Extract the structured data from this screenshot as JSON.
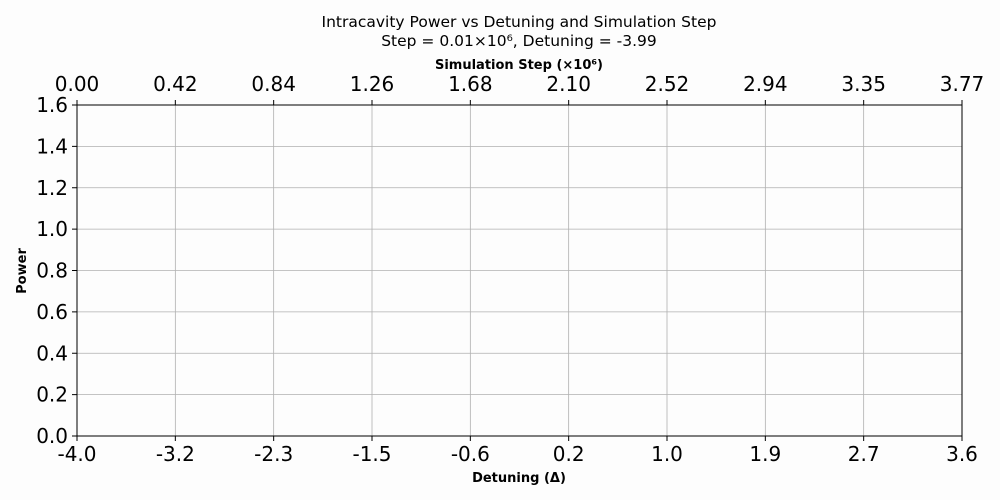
{
  "chart_data": {
    "type": "line",
    "title": "Intracavity Power vs Detuning and Simulation Step",
    "subtitle": "Step = 0.01×10⁶, Detuning = -3.99",
    "xlabel": "Detuning (Δ)",
    "ylabel": "Power",
    "top_xlabel": "Simulation Step (×10⁶)",
    "xlim": [
      -4.0,
      3.6
    ],
    "ylim": [
      0.0,
      1.6
    ],
    "x_ticks": [
      "-4.0",
      "-3.2",
      "-2.3",
      "-1.5",
      "-0.6",
      "0.2",
      "1.0",
      "1.9",
      "2.7",
      "3.6"
    ],
    "top_x_ticks": [
      "0.00",
      "0.42",
      "0.84",
      "1.26",
      "1.68",
      "2.10",
      "2.52",
      "2.94",
      "3.35",
      "3.77"
    ],
    "y_ticks": [
      "0.0",
      "0.2",
      "0.4",
      "0.6",
      "0.8",
      "1.0",
      "1.2",
      "1.4",
      "1.6"
    ],
    "grid": true,
    "series": []
  }
}
